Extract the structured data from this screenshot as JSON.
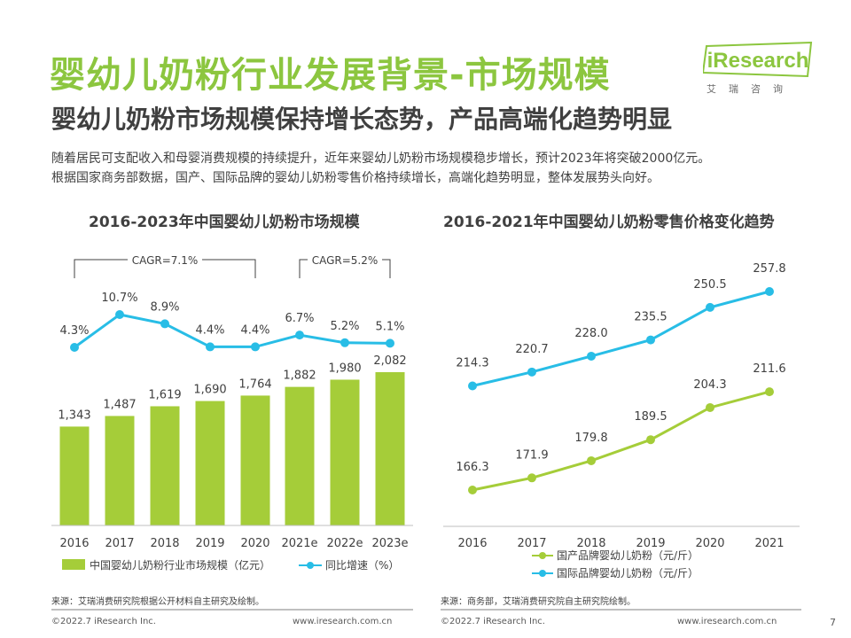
{
  "header": {
    "title": "婴幼儿奶粉行业发展背景-市场规模",
    "subtitle": "婴幼儿奶粉市场规模保持增长态势，产品高端化趋势明显"
  },
  "logo": {
    "text": "iResearch",
    "cn": "艾瑞咨询",
    "color": "#8CC63F"
  },
  "intro": [
    "随着居民可支配收入和母婴消费规模的持续提升，近年来婴幼儿奶粉市场规模稳步增长，预计2023年将突破2000亿元。",
    "根据国家商务部数据，国产、国际品牌的婴幼儿奶粉零售价格持续增长，高端化趋势明显，整体发展势头向好。"
  ],
  "chart_data": [
    {
      "type": "bar",
      "title": "2016-2023年中国婴幼儿奶粉市场规模",
      "categories": [
        "2016",
        "2017",
        "2018",
        "2019",
        "2020",
        "2021e",
        "2022e",
        "2023e"
      ],
      "series": [
        {
          "name": "中国婴幼儿奶粉行业市场规模（亿元）",
          "type": "bar",
          "color": "#A5CD39",
          "values": [
            1343,
            1487,
            1619,
            1690,
            1764,
            1882,
            1980,
            2082
          ],
          "labels": [
            "1,343",
            "1,487",
            "1,619",
            "1,690",
            "1,764",
            "1,882",
            "1,980",
            "2,082"
          ]
        },
        {
          "name": "同比增速（%）",
          "type": "line",
          "color": "#28BDE6",
          "values": [
            4.3,
            10.7,
            8.9,
            4.4,
            4.4,
            6.7,
            5.2,
            5.1
          ],
          "labels": [
            "4.3%",
            "10.7%",
            "8.9%",
            "4.4%",
            "4.4%",
            "6.7%",
            "5.2%",
            "5.1%"
          ]
        }
      ],
      "annotations": [
        {
          "text": "CAGR=7.1%",
          "from": "2016",
          "to": "2020"
        },
        {
          "text": "CAGR=5.2%",
          "from": "2021e",
          "to": "2023e"
        }
      ],
      "legend": "bottom"
    },
    {
      "type": "line",
      "title": "2016-2021年中国婴幼儿奶粉零售价格变化趋势",
      "categories": [
        "2016",
        "2017",
        "2018",
        "2019",
        "2020",
        "2021"
      ],
      "series": [
        {
          "name": "国产品牌婴幼儿奶粉（元/斤）",
          "color": "#A5CD39",
          "values": [
            166.3,
            171.9,
            179.8,
            189.5,
            204.3,
            211.6
          ],
          "labels": [
            "166.3",
            "171.9",
            "179.8",
            "189.5",
            "204.3",
            "211.6"
          ]
        },
        {
          "name": "国际品牌婴幼儿奶粉（元/斤）",
          "color": "#28BDE6",
          "values": [
            214.3,
            220.7,
            228.0,
            235.5,
            250.5,
            257.8
          ],
          "labels": [
            "214.3",
            "220.7",
            "228.0",
            "235.5",
            "250.5",
            "257.8"
          ]
        }
      ],
      "legend": "bottom"
    }
  ],
  "sources": {
    "left": "来源：艾瑞消费研究院根据公开材料自主研究及绘制。",
    "right": "来源：商务部，艾瑞消费研究院自主研究院绘制。"
  },
  "footer": {
    "copyright": "©2022.7 iResearch Inc.",
    "website": "www.iresearch.com.cn",
    "page": "7"
  }
}
